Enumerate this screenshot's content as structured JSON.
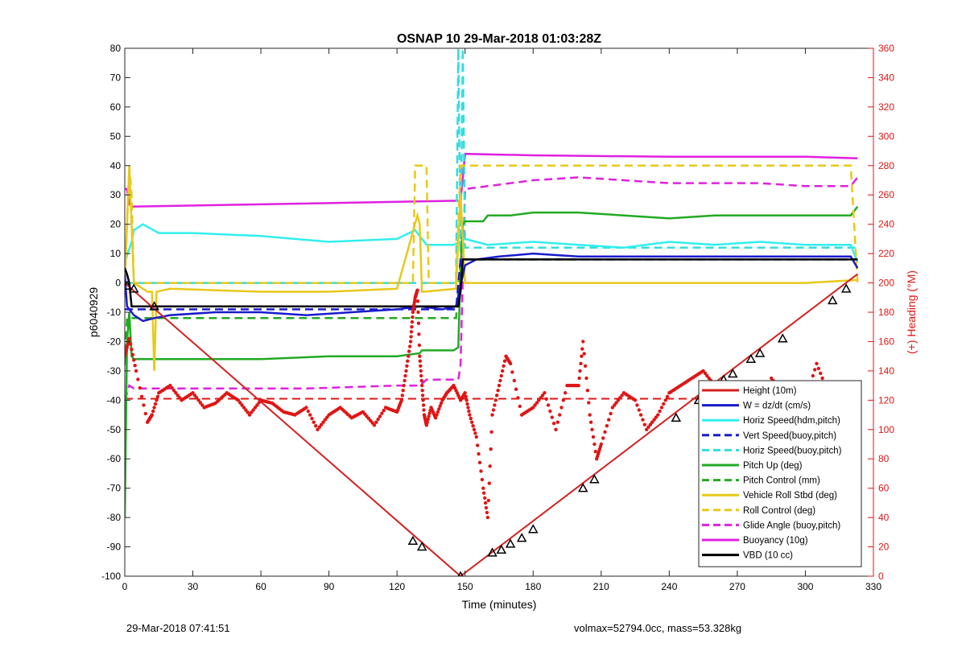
{
  "footer": {
    "timestamp": "29-Mar-2018 07:41:51",
    "params": "volmax=52794.0cc, mass=53.328kg"
  },
  "chart_data": {
    "type": "line",
    "title": "OSNAP 10 29-Mar-2018 01:03:28Z",
    "xlabel": "Time (minutes)",
    "ylabel": "p6040929",
    "y2label": "(+) Heading (°M)",
    "xlim": [
      0,
      330
    ],
    "ylim": [
      -100,
      80
    ],
    "y2lim": [
      0,
      360
    ],
    "xticks": [
      0,
      30,
      60,
      90,
      120,
      150,
      180,
      210,
      240,
      270,
      300,
      330
    ],
    "yticks": [
      -100,
      -90,
      -80,
      -70,
      -60,
      -50,
      -40,
      -30,
      -20,
      -10,
      0,
      10,
      20,
      30,
      40,
      50,
      60,
      70,
      80
    ],
    "y2ticks": [
      0,
      20,
      40,
      60,
      80,
      100,
      120,
      140,
      160,
      180,
      200,
      220,
      240,
      260,
      280,
      300,
      320,
      340,
      360
    ],
    "grid": false,
    "legend_position": "bottom-right",
    "colors": {
      "height": "#d42020",
      "w": "#1a1acc",
      "horiz_hdm": "#33eeee",
      "vert_speed": "#1a1acc",
      "horiz_buoy": "#33dddd",
      "pitch_up": "#22aa22",
      "pitch_control": "#22aa22",
      "roll": "#e8c81a",
      "roll_control": "#e8c81a",
      "glide_angle": "#e020e0",
      "buoyancy": "#e020e0",
      "vbd": "#000000",
      "heading": "#e01515",
      "heading_ref": "#e01515",
      "axis_right": "#e01515"
    },
    "legend": [
      {
        "key": "height",
        "label": "Height (10m)",
        "style": "solid"
      },
      {
        "key": "w",
        "label": "W = dz/dt (cm/s)",
        "style": "solid"
      },
      {
        "key": "horiz_hdm",
        "label": "Horiz Speed(hdm,pitch)",
        "style": "solid"
      },
      {
        "key": "vert_speed",
        "label": "Vert Speed(buoy,pitch)",
        "style": "dashed"
      },
      {
        "key": "horiz_buoy",
        "label": "Horiz Speed(buoy,pitch)",
        "style": "dashed"
      },
      {
        "key": "pitch_up",
        "label": "Pitch Up (deg)",
        "style": "solid"
      },
      {
        "key": "pitch_control",
        "label": "Pitch Control (mm)",
        "style": "dashed"
      },
      {
        "key": "roll",
        "label": "Vehicle Roll Stbd (deg)",
        "style": "solid"
      },
      {
        "key": "roll_control",
        "label": "Roll Control (deg)",
        "style": "dashed"
      },
      {
        "key": "glide_angle",
        "label": "Glide Angle (buoy,pitch)",
        "style": "dashed"
      },
      {
        "key": "buoyancy",
        "label": "Buoyancy (10g)",
        "style": "solid"
      },
      {
        "key": "vbd",
        "label": "VBD (10 cc)",
        "style": "solid"
      }
    ],
    "series": {
      "height": {
        "x": [
          0,
          148,
          323
        ],
        "y": [
          0,
          -100,
          3
        ]
      },
      "height_markers": {
        "x": [
          1,
          4,
          13,
          127,
          131,
          148,
          162,
          166,
          170,
          175,
          180,
          202,
          207,
          243,
          253,
          264,
          268,
          276,
          280,
          290,
          312,
          318
        ],
        "y": [
          -1,
          -2,
          -8,
          -88,
          -90,
          -100,
          -92,
          -91,
          -89,
          -87,
          -84,
          -70,
          -67,
          -46,
          -40,
          -33,
          -31,
          -26,
          -24,
          -19,
          -6,
          -2
        ]
      },
      "w": {
        "x": [
          0,
          1,
          3,
          4,
          8,
          13,
          20,
          40,
          60,
          80,
          100,
          120,
          130,
          140,
          146,
          148,
          150,
          155,
          165,
          180,
          200,
          220,
          240,
          260,
          280,
          300,
          320,
          323
        ],
        "y": [
          3,
          -8,
          -10,
          -11,
          -13,
          -12,
          -11,
          -10,
          -10,
          -11,
          -10,
          -9,
          -8,
          -9,
          -8,
          -1,
          6,
          8,
          9,
          10,
          9,
          9,
          9,
          9,
          9,
          9,
          9,
          5
        ]
      },
      "horiz_hdm": {
        "x": [
          0,
          3,
          4,
          8,
          15,
          30,
          60,
          90,
          120,
          128,
          133,
          145,
          148,
          150,
          160,
          180,
          200,
          220,
          240,
          260,
          280,
          300,
          320,
          323
        ],
        "y": [
          7,
          14,
          18,
          20,
          17,
          17,
          16,
          14,
          15,
          18,
          13,
          13,
          14,
          15,
          13,
          14,
          13,
          12,
          14,
          13,
          14,
          13,
          13,
          7
        ]
      },
      "vert_speed": {
        "x": [
          0,
          146,
          148,
          323
        ],
        "y": [
          -9,
          -9,
          8,
          8
        ]
      },
      "horiz_buoy": {
        "x": [
          0,
          146,
          147,
          148,
          149,
          150,
          160,
          210,
          240,
          270,
          300,
          323
        ],
        "y": [
          0,
          0,
          80,
          10,
          80,
          12,
          12,
          12,
          12,
          12,
          12,
          12
        ]
      },
      "pitch_up": {
        "x": [
          0,
          1,
          2,
          3,
          4,
          10,
          30,
          60,
          90,
          120,
          130,
          131,
          145,
          147,
          148,
          149,
          150,
          158,
          160,
          170,
          180,
          200,
          220,
          240,
          260,
          280,
          300,
          320,
          323
        ],
        "y": [
          -80,
          -20,
          -10,
          -25,
          -26,
          -26,
          -26,
          -26,
          -25,
          -25,
          -24,
          -23,
          -23,
          -22,
          5,
          20,
          21,
          21,
          23,
          23,
          24,
          24,
          23,
          22,
          23,
          23,
          23,
          23,
          26
        ]
      },
      "pitch_control": {
        "x": [
          0,
          1,
          4,
          146,
          148,
          323
        ],
        "y": [
          -28,
          -12,
          -12,
          -12,
          8,
          8
        ]
      },
      "roll": {
        "x": [
          0,
          2,
          4,
          10,
          12,
          13,
          14,
          20,
          60,
          90,
          120,
          129,
          130,
          131,
          132,
          146,
          148,
          150,
          160,
          200,
          260,
          300,
          323
        ],
        "y": [
          0,
          40,
          0,
          -3,
          -3,
          -30,
          -3,
          -2,
          -3,
          -3,
          -2,
          23,
          20,
          -3,
          -3,
          -2,
          30,
          0,
          0,
          0,
          0,
          0,
          1
        ]
      },
      "roll_control": {
        "x": [
          0,
          2,
          3,
          4,
          127,
          128,
          133,
          134,
          146,
          148,
          160,
          280,
          320,
          323
        ],
        "y": [
          0,
          40,
          30,
          0,
          0,
          40,
          40,
          0,
          0,
          40,
          40,
          40,
          40,
          0
        ]
      },
      "glide_angle": {
        "x": [
          0,
          2,
          4,
          10,
          40,
          80,
          120,
          130,
          133,
          145,
          147,
          148,
          150,
          160,
          180,
          200,
          240,
          280,
          300,
          320,
          323
        ],
        "y": [
          -40,
          -35,
          -36,
          -36,
          -36,
          -36,
          -35,
          -35,
          -33,
          -33,
          -33,
          -28,
          32,
          33,
          35,
          36,
          34,
          34,
          33,
          33,
          36
        ]
      },
      "buoyancy": {
        "x": [
          0,
          1,
          2,
          3,
          145,
          146,
          148,
          150,
          180,
          240,
          300,
          323
        ],
        "y": [
          32,
          32,
          27,
          26,
          28,
          28,
          28,
          44,
          43.5,
          43,
          43,
          42.5
        ]
      },
      "vbd": {
        "x": [
          0,
          1,
          2,
          3,
          4,
          146,
          147,
          148,
          149,
          150,
          180,
          240,
          300,
          323
        ],
        "y": [
          5,
          3,
          0,
          -8,
          -8,
          -8,
          -8,
          -3,
          8,
          8,
          8,
          8,
          8,
          8
        ]
      },
      "heading": {
        "x": [
          0,
          2,
          5,
          10,
          12,
          15,
          20,
          25,
          30,
          35,
          40,
          45,
          50,
          55,
          60,
          65,
          70,
          75,
          80,
          85,
          90,
          95,
          100,
          105,
          110,
          115,
          120,
          122,
          124,
          126,
          127,
          128,
          129,
          130,
          131,
          132,
          133,
          135,
          137,
          140,
          142,
          145,
          148,
          150,
          152,
          155,
          158,
          160,
          162,
          165,
          168,
          170,
          175,
          180,
          185,
          190,
          195,
          200,
          202,
          205,
          208,
          210,
          215,
          220,
          225,
          230,
          235,
          240,
          245,
          250,
          255,
          260,
          265,
          270,
          275,
          280,
          285,
          290,
          295,
          300,
          305,
          310,
          315,
          318,
          320,
          323
        ],
        "y": [
          150,
          162,
          140,
          105,
          110,
          125,
          130,
          120,
          125,
          115,
          118,
          125,
          120,
          110,
          120,
          118,
          112,
          110,
          115,
          100,
          110,
          115,
          108,
          112,
          103,
          115,
          112,
          120,
          140,
          160,
          180,
          190,
          195,
          150,
          130,
          110,
          103,
          115,
          108,
          120,
          125,
          130,
          120,
          125,
          110,
          95,
          60,
          40,
          110,
          130,
          150,
          145,
          110,
          115,
          125,
          100,
          130,
          130,
          160,
          110,
          80,
          90,
          115,
          125,
          120,
          100,
          110,
          125,
          130,
          135,
          140,
          130,
          110,
          120,
          105,
          110,
          135,
          125,
          110,
          120,
          145,
          125,
          110,
          120,
          130,
          95
        ]
      },
      "heading_ref": {
        "x": [
          0,
          323
        ],
        "y": [
          121,
          121
        ]
      }
    }
  }
}
